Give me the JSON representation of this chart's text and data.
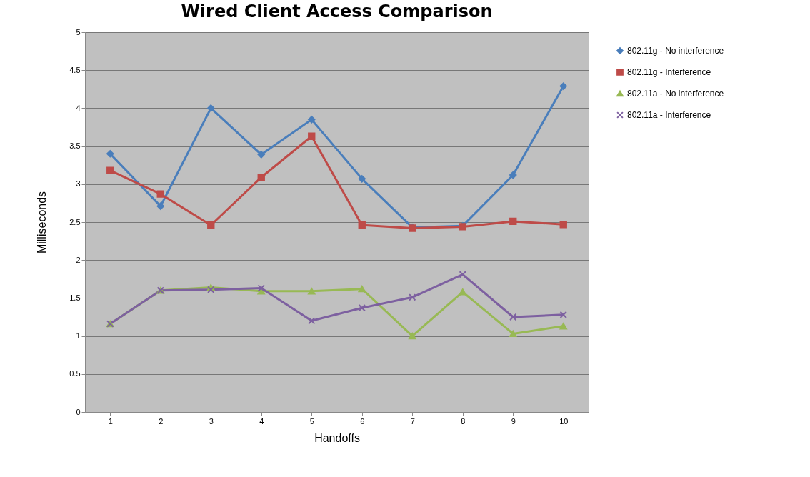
{
  "chart_data": {
    "type": "line",
    "title": "Wired Client Access Comparison",
    "xlabel": "Handoffs",
    "ylabel": "Milliseconds",
    "categories": [
      "1",
      "2",
      "3",
      "4",
      "5",
      "6",
      "7",
      "8",
      "9",
      "10"
    ],
    "series": [
      {
        "name": "802.11g - No interference",
        "color": "#4a7ebb",
        "marker": "diamond",
        "values": [
          3.4,
          2.71,
          4.0,
          3.39,
          3.85,
          3.07,
          2.43,
          2.45,
          3.12,
          4.29
        ]
      },
      {
        "name": "802.11g - Interference",
        "color": "#be4b48",
        "marker": "square",
        "values": [
          3.18,
          2.87,
          2.46,
          3.09,
          3.63,
          2.46,
          2.42,
          2.44,
          2.51,
          2.47
        ]
      },
      {
        "name": "802.11a - No interference",
        "color": "#98b954",
        "marker": "triangle",
        "values": [
          1.16,
          1.6,
          1.64,
          1.59,
          1.59,
          1.62,
          1.0,
          1.58,
          1.03,
          1.13
        ]
      },
      {
        "name": "802.11a - Interference",
        "color": "#7d60a0",
        "marker": "cross",
        "values": [
          1.16,
          1.6,
          1.61,
          1.63,
          1.2,
          1.37,
          1.51,
          1.81,
          1.25,
          1.28
        ]
      }
    ],
    "ylim": [
      0,
      5
    ],
    "yticks": [
      0,
      0.5,
      1,
      1.5,
      2,
      2.5,
      3,
      3.5,
      4,
      4.5,
      5
    ],
    "grid": "y",
    "legend": "right",
    "line_style": "solid"
  }
}
